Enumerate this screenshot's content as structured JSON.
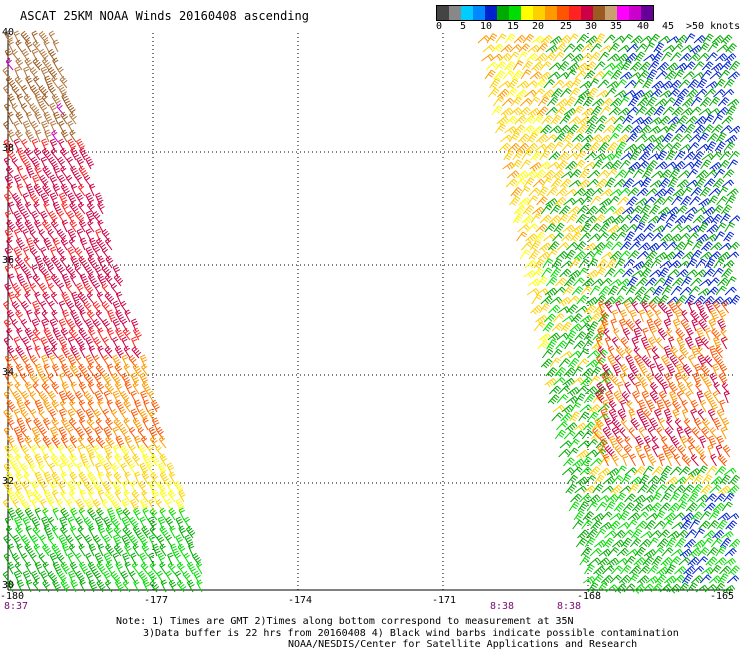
{
  "title": "ASCAT 25KM NOAA Winds 20160408 ascending",
  "legend": {
    "colors": [
      "#444444",
      "#888888",
      "#00ccff",
      "#0088ff",
      "#0022cc",
      "#00aa00",
      "#00dd00",
      "#ffff00",
      "#ffd000",
      "#ff9900",
      "#ff5500",
      "#ff2222",
      "#cc0044",
      "#9a5a20",
      "#c8a070",
      "#ff00ff",
      "#cc00cc",
      "#660099"
    ],
    "labels": [
      "0",
      "5",
      "10",
      "15",
      "20",
      "25",
      "30",
      "35",
      "40",
      "45",
      ">50 knots"
    ]
  },
  "axes": {
    "lat_labels": [
      "40",
      "38",
      "36",
      "34",
      "32",
      "30"
    ],
    "lon_labels": [
      "-180",
      "-177",
      "-174",
      "-171",
      "-168",
      "-165"
    ]
  },
  "times": [
    "8:37",
    "8:38",
    "8:38"
  ],
  "notes": {
    "line1": "Note: 1) Times are GMT 2)Times along bottom correspond to measurement at 35N",
    "line2": "3)Data buffer is 22 hrs from 20160408 4) Black wind barbs indicate possible contamination",
    "line3": "NOAA/NESDIS/Center for Satellite Applications and Research"
  }
}
